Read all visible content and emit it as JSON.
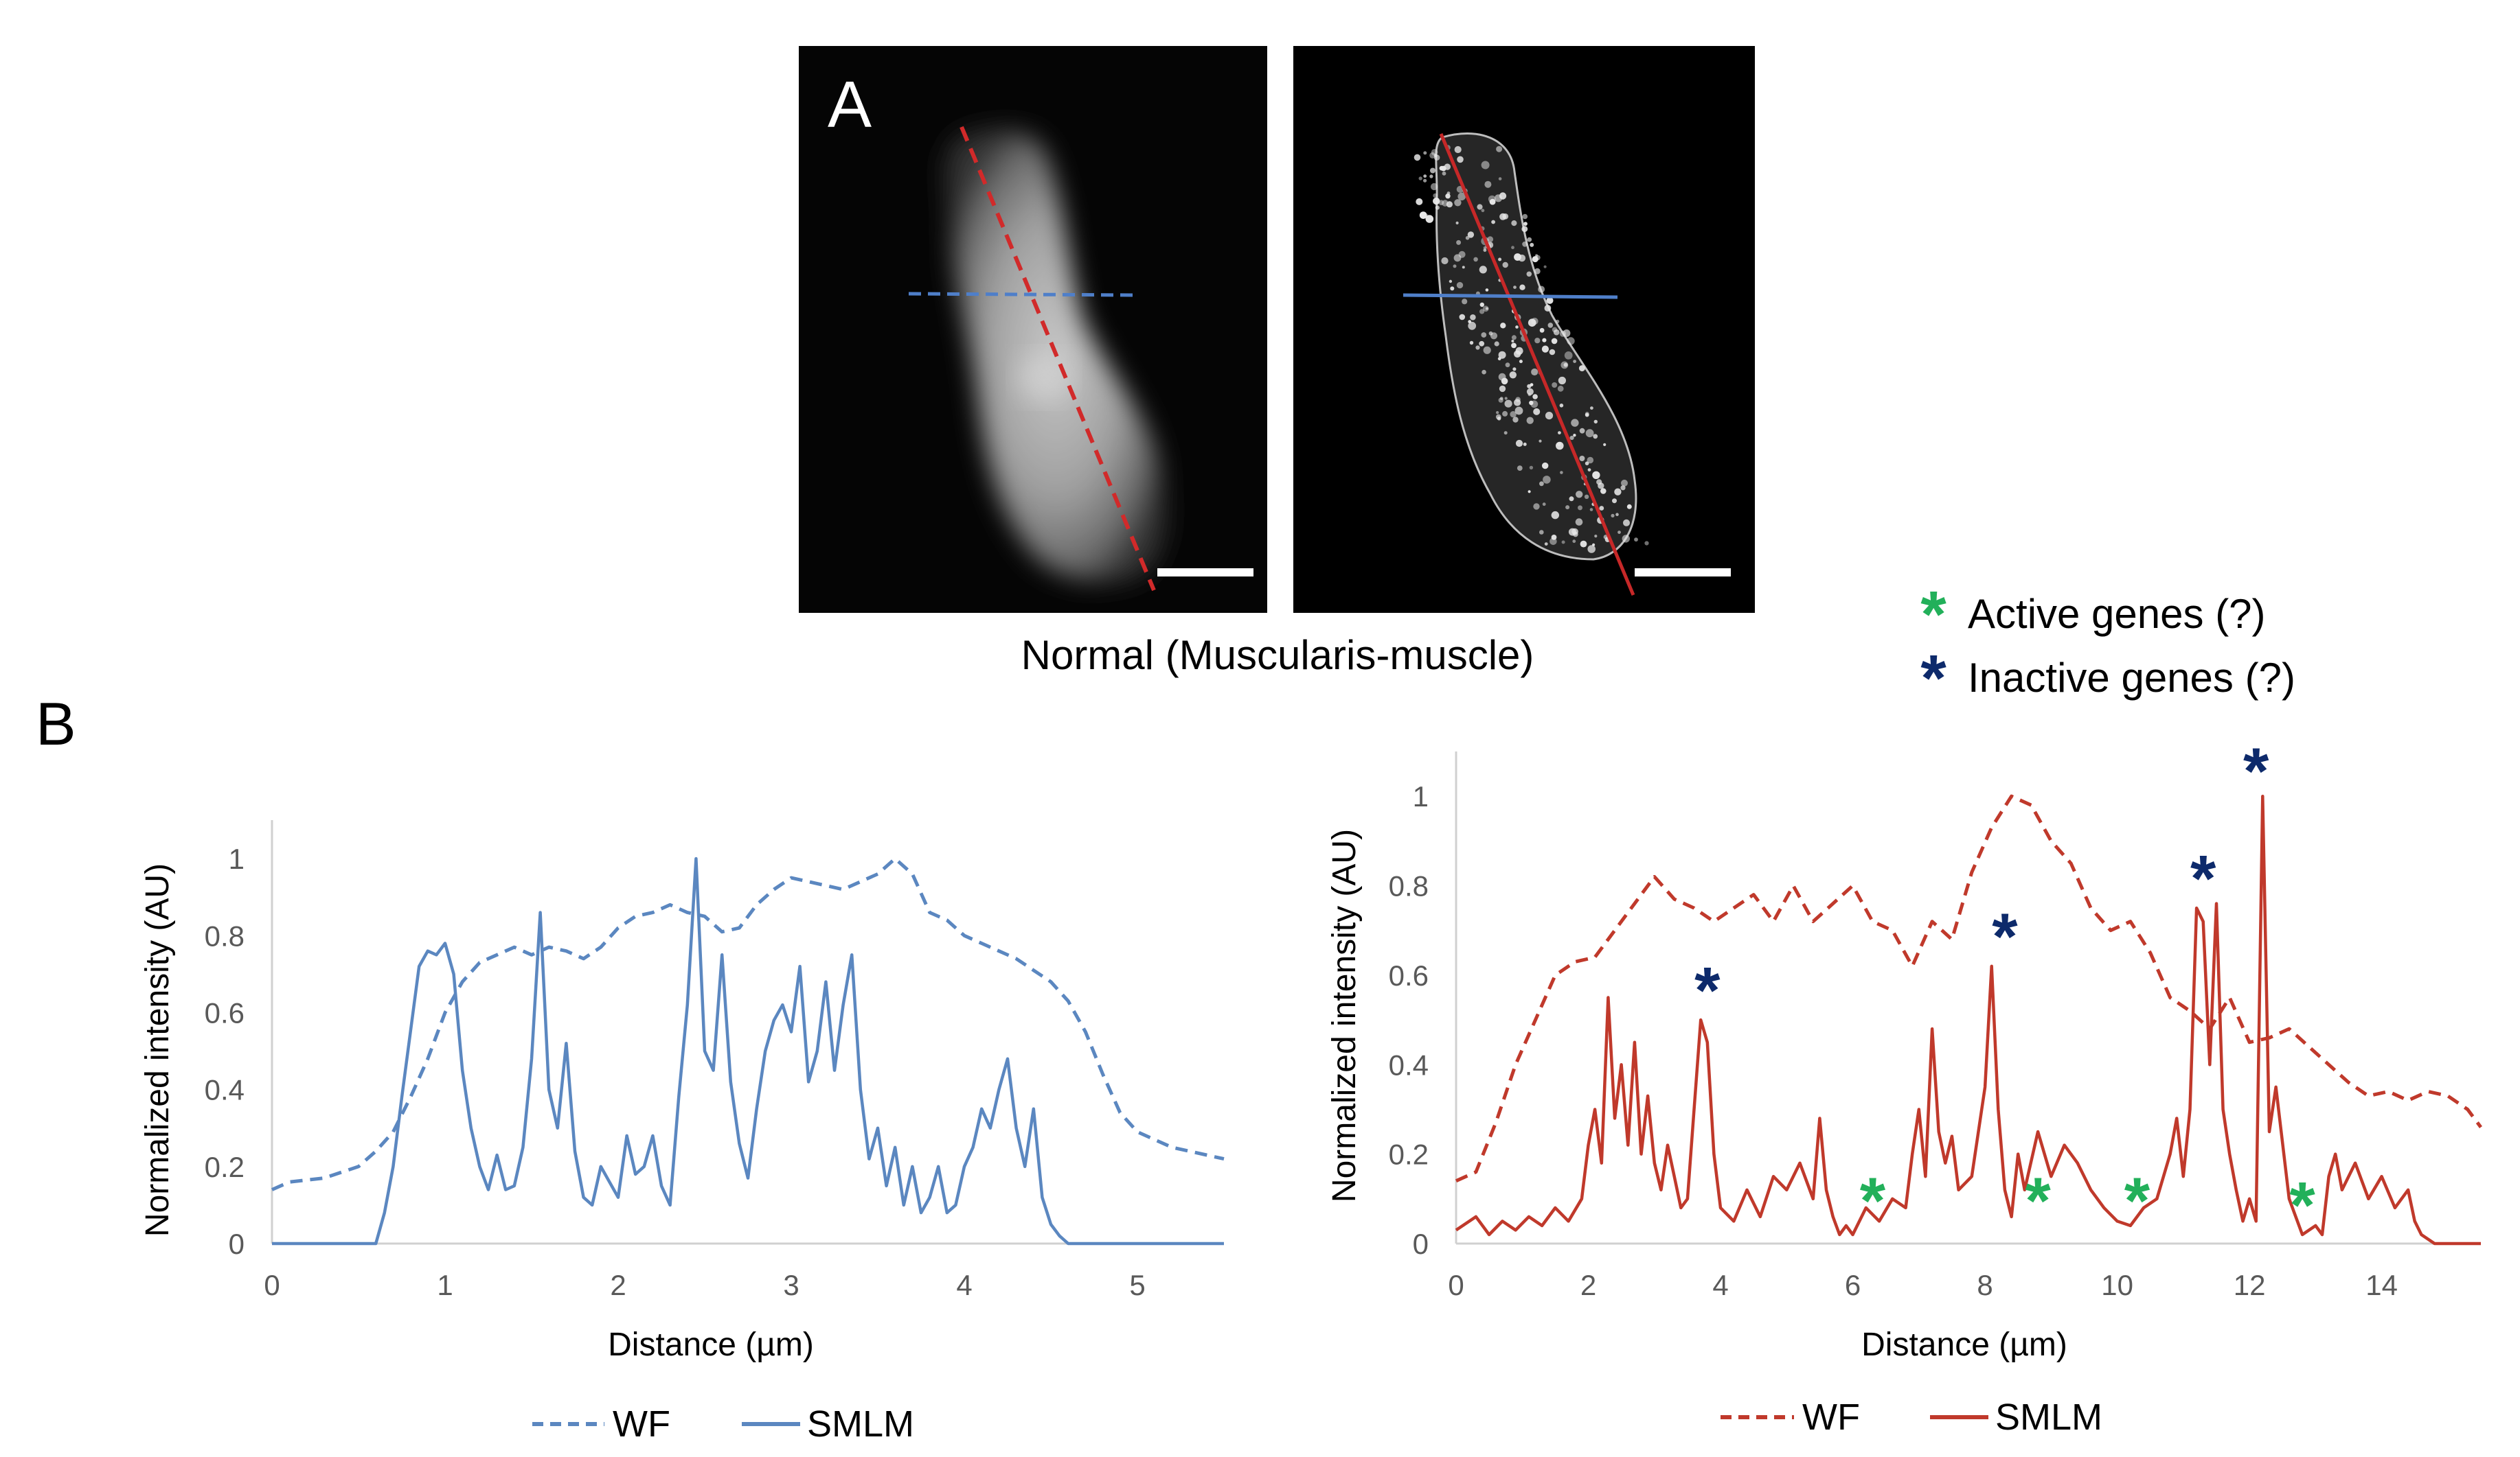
{
  "figure": {
    "panel_a_label": "A",
    "panel_b_label": "B",
    "caption": "Normal (Muscularis-muscle)",
    "annotation_legend": [
      {
        "label": "Active genes (?)",
        "color": "#22b05a"
      },
      {
        "label": "Inactive genes (?)",
        "color": "#0d2a6b"
      }
    ]
  },
  "chart_data": [
    {
      "type": "line",
      "xlabel": "Distance (µm)",
      "ylabel": "Normalized intensity (AU)",
      "xlim": [
        0,
        5.5
      ],
      "ylim": [
        0,
        1.1
      ],
      "xticks": [
        0,
        1,
        2,
        3,
        4,
        5
      ],
      "yticks": [
        0,
        0.2,
        0.4,
        0.6,
        0.8,
        1
      ],
      "color": "#5b87c0",
      "series": [
        {
          "name": "WF",
          "style": "dashed",
          "x": [
            0,
            0.1,
            0.3,
            0.5,
            0.6,
            0.7,
            0.8,
            0.9,
            1.0,
            1.1,
            1.2,
            1.3,
            1.4,
            1.5,
            1.6,
            1.7,
            1.8,
            1.9,
            2.0,
            2.1,
            2.2,
            2.3,
            2.4,
            2.5,
            2.6,
            2.7,
            2.8,
            2.9,
            3.0,
            3.1,
            3.2,
            3.3,
            3.4,
            3.5,
            3.6,
            3.7,
            3.8,
            3.9,
            4.0,
            4.1,
            4.2,
            4.3,
            4.4,
            4.5,
            4.6,
            4.7,
            4.8,
            4.9,
            5.0,
            5.1,
            5.2,
            5.3,
            5.4,
            5.5
          ],
          "y": [
            0.14,
            0.16,
            0.17,
            0.2,
            0.24,
            0.29,
            0.38,
            0.48,
            0.6,
            0.68,
            0.73,
            0.75,
            0.77,
            0.75,
            0.77,
            0.76,
            0.74,
            0.77,
            0.82,
            0.85,
            0.86,
            0.88,
            0.86,
            0.85,
            0.81,
            0.82,
            0.88,
            0.92,
            0.95,
            0.94,
            0.93,
            0.92,
            0.94,
            0.96,
            1.0,
            0.96,
            0.86,
            0.84,
            0.8,
            0.78,
            0.76,
            0.74,
            0.71,
            0.68,
            0.63,
            0.55,
            0.44,
            0.34,
            0.29,
            0.27,
            0.25,
            0.24,
            0.23,
            0.22
          ]
        },
        {
          "name": "SMLM",
          "style": "solid",
          "x": [
            0,
            0.6,
            0.65,
            0.7,
            0.75,
            0.8,
            0.85,
            0.9,
            0.95,
            1.0,
            1.05,
            1.1,
            1.15,
            1.2,
            1.25,
            1.3,
            1.35,
            1.4,
            1.45,
            1.5,
            1.55,
            1.6,
            1.65,
            1.7,
            1.75,
            1.8,
            1.85,
            1.9,
            1.95,
            2.0,
            2.05,
            2.1,
            2.15,
            2.2,
            2.25,
            2.3,
            2.35,
            2.4,
            2.45,
            2.5,
            2.55,
            2.6,
            2.65,
            2.7,
            2.75,
            2.8,
            2.85,
            2.9,
            2.95,
            3.0,
            3.05,
            3.1,
            3.15,
            3.2,
            3.25,
            3.3,
            3.35,
            3.4,
            3.45,
            3.5,
            3.55,
            3.6,
            3.65,
            3.7,
            3.75,
            3.8,
            3.85,
            3.9,
            3.95,
            4.0,
            4.05,
            4.1,
            4.15,
            4.2,
            4.25,
            4.3,
            4.35,
            4.4,
            4.45,
            4.5,
            4.55,
            4.6,
            4.65,
            4.7,
            4.75,
            5.5
          ],
          "y": [
            0,
            0,
            0.08,
            0.2,
            0.38,
            0.55,
            0.72,
            0.76,
            0.75,
            0.78,
            0.7,
            0.45,
            0.3,
            0.2,
            0.14,
            0.23,
            0.14,
            0.15,
            0.25,
            0.48,
            0.86,
            0.4,
            0.3,
            0.52,
            0.24,
            0.12,
            0.1,
            0.2,
            0.16,
            0.12,
            0.28,
            0.18,
            0.2,
            0.28,
            0.15,
            0.1,
            0.38,
            0.62,
            1.0,
            0.5,
            0.45,
            0.75,
            0.42,
            0.26,
            0.17,
            0.35,
            0.5,
            0.58,
            0.62,
            0.55,
            0.72,
            0.42,
            0.5,
            0.68,
            0.45,
            0.62,
            0.75,
            0.4,
            0.22,
            0.3,
            0.15,
            0.25,
            0.1,
            0.2,
            0.08,
            0.12,
            0.2,
            0.08,
            0.1,
            0.2,
            0.25,
            0.35,
            0.3,
            0.4,
            0.48,
            0.3,
            0.2,
            0.35,
            0.12,
            0.05,
            0.02,
            0,
            0,
            0,
            0,
            0
          ]
        }
      ]
    },
    {
      "type": "line",
      "xlabel": "Distance (µm)",
      "ylabel": "Normalized intensity (AU)",
      "xlim": [
        0,
        15.5
      ],
      "ylim": [
        0,
        1.1
      ],
      "xticks": [
        0,
        2,
        4,
        6,
        8,
        10,
        12,
        14
      ],
      "yticks": [
        0,
        0.2,
        0.4,
        0.6,
        0.8,
        1
      ],
      "color": "#c0392b",
      "series": [
        {
          "name": "WF",
          "style": "dashed",
          "x": [
            0,
            0.3,
            0.6,
            0.9,
            1.2,
            1.5,
            1.8,
            2.1,
            2.4,
            2.7,
            3.0,
            3.3,
            3.6,
            3.9,
            4.2,
            4.5,
            4.8,
            5.1,
            5.4,
            5.7,
            6.0,
            6.3,
            6.6,
            6.9,
            7.2,
            7.5,
            7.8,
            8.1,
            8.4,
            8.7,
            9.0,
            9.3,
            9.6,
            9.9,
            10.2,
            10.5,
            10.8,
            11.1,
            11.4,
            11.7,
            12.0,
            12.3,
            12.6,
            12.9,
            13.2,
            13.5,
            13.8,
            14.1,
            14.4,
            14.7,
            15.0,
            15.3,
            15.5
          ],
          "y": [
            0.14,
            0.16,
            0.27,
            0.4,
            0.5,
            0.6,
            0.63,
            0.64,
            0.7,
            0.76,
            0.82,
            0.77,
            0.75,
            0.72,
            0.75,
            0.78,
            0.72,
            0.8,
            0.72,
            0.76,
            0.8,
            0.72,
            0.7,
            0.62,
            0.72,
            0.68,
            0.83,
            0.93,
            1.0,
            0.98,
            0.9,
            0.85,
            0.75,
            0.7,
            0.72,
            0.65,
            0.55,
            0.52,
            0.48,
            0.55,
            0.45,
            0.46,
            0.48,
            0.44,
            0.4,
            0.36,
            0.33,
            0.34,
            0.32,
            0.34,
            0.33,
            0.3,
            0.26
          ]
        },
        {
          "name": "SMLM",
          "style": "solid",
          "x": [
            0,
            0.3,
            0.5,
            0.7,
            0.9,
            1.1,
            1.3,
            1.5,
            1.7,
            1.9,
            2.0,
            2.1,
            2.2,
            2.3,
            2.4,
            2.5,
            2.6,
            2.7,
            2.8,
            2.9,
            3.0,
            3.1,
            3.2,
            3.3,
            3.4,
            3.5,
            3.6,
            3.7,
            3.8,
            3.9,
            4.0,
            4.2,
            4.4,
            4.6,
            4.8,
            5.0,
            5.2,
            5.4,
            5.5,
            5.6,
            5.7,
            5.8,
            5.9,
            6.0,
            6.2,
            6.4,
            6.6,
            6.8,
            6.9,
            7.0,
            7.1,
            7.2,
            7.3,
            7.4,
            7.5,
            7.6,
            7.8,
            8.0,
            8.1,
            8.2,
            8.3,
            8.4,
            8.5,
            8.6,
            8.8,
            9.0,
            9.2,
            9.4,
            9.6,
            9.8,
            10.0,
            10.2,
            10.4,
            10.6,
            10.8,
            10.9,
            11.0,
            11.1,
            11.2,
            11.3,
            11.4,
            11.5,
            11.6,
            11.7,
            11.8,
            11.9,
            12.0,
            12.1,
            12.2,
            12.3,
            12.4,
            12.6,
            12.8,
            13.0,
            13.1,
            13.2,
            13.3,
            13.4,
            13.6,
            13.8,
            14.0,
            14.2,
            14.4,
            14.5,
            14.6,
            14.7,
            14.8,
            15.0,
            15.5
          ],
          "y": [
            0.03,
            0.06,
            0.02,
            0.05,
            0.03,
            0.06,
            0.04,
            0.08,
            0.05,
            0.1,
            0.22,
            0.3,
            0.18,
            0.55,
            0.28,
            0.4,
            0.22,
            0.45,
            0.2,
            0.33,
            0.18,
            0.12,
            0.22,
            0.15,
            0.08,
            0.1,
            0.3,
            0.5,
            0.45,
            0.2,
            0.08,
            0.05,
            0.12,
            0.06,
            0.15,
            0.12,
            0.18,
            0.1,
            0.28,
            0.12,
            0.06,
            0.02,
            0.04,
            0.02,
            0.08,
            0.05,
            0.1,
            0.08,
            0.2,
            0.3,
            0.15,
            0.48,
            0.25,
            0.18,
            0.24,
            0.12,
            0.15,
            0.35,
            0.62,
            0.3,
            0.12,
            0.06,
            0.2,
            0.12,
            0.25,
            0.15,
            0.22,
            0.18,
            0.12,
            0.08,
            0.05,
            0.04,
            0.08,
            0.1,
            0.2,
            0.28,
            0.15,
            0.3,
            0.75,
            0.72,
            0.4,
            0.76,
            0.3,
            0.2,
            0.12,
            0.05,
            0.1,
            0.05,
            1.0,
            0.25,
            0.35,
            0.1,
            0.02,
            0.04,
            0.02,
            0.15,
            0.2,
            0.12,
            0.18,
            0.1,
            0.15,
            0.08,
            0.12,
            0.05,
            0.02,
            0.01,
            0,
            0,
            0
          ]
        },
        {
          "name": "Active genes markers",
          "style": "marker",
          "x": [
            6.3,
            8.8,
            10.3,
            12.8
          ],
          "y": [
            0.11,
            0.11,
            0.11,
            0.1
          ]
        },
        {
          "name": "Inactive genes markers",
          "style": "marker",
          "x": [
            3.8,
            8.3,
            11.3,
            12.1
          ],
          "y": [
            0.58,
            0.7,
            0.83,
            1.07
          ]
        }
      ]
    }
  ]
}
